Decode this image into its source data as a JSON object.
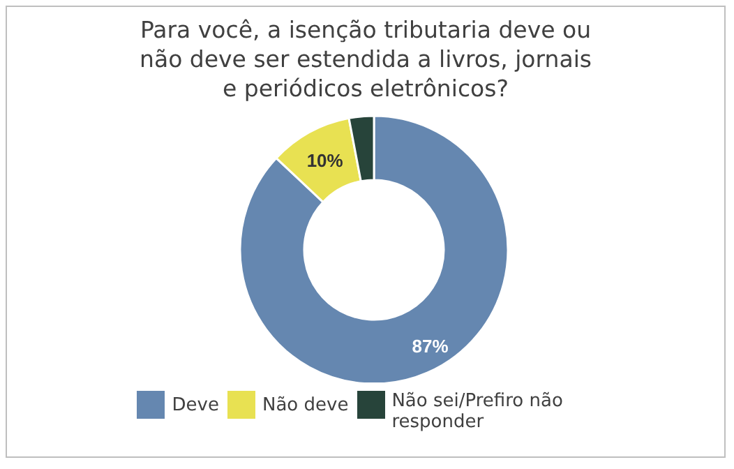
{
  "chart_data": {
    "type": "donut",
    "title": "Para você, a isenção tributaria deve ou não deve ser estendida a livros, jornais e periódicos eletrônicos?",
    "categories": [
      "Deve",
      "Não deve",
      "Não sei/Prefiro não responder"
    ],
    "values": [
      87,
      10,
      3
    ],
    "colors": [
      "#6587b0",
      "#e8e152",
      "#27443a"
    ],
    "value_labels": [
      "87%",
      "10%",
      null
    ],
    "legend": "bottom"
  }
}
